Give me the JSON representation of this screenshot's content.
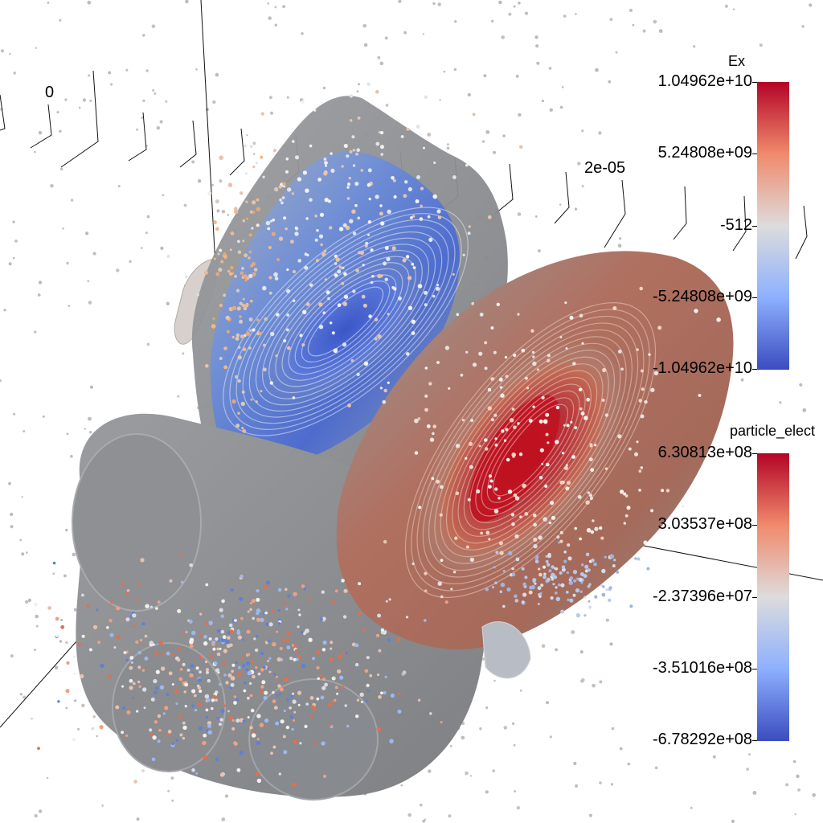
{
  "scene": {
    "field_colormap": {
      "low": "#3b4cc0",
      "mid": "#dddddd",
      "high": "#b40426"
    },
    "axis": {
      "tick_labels": [
        "0",
        "2e-05"
      ]
    }
  },
  "legends": {
    "ex": {
      "title": "Ex",
      "tick_labels": [
        "1.04962e+10",
        "5.24808e+09",
        "-512",
        "-5.24808e+09",
        "-1.04962e+10"
      ]
    },
    "particle": {
      "title": "particle_elect",
      "tick_labels": [
        "6.30813e+08",
        "3.03537e+08",
        "-2.37396e+07",
        "-3.51016e+08",
        "-6.78292e+08"
      ]
    }
  }
}
